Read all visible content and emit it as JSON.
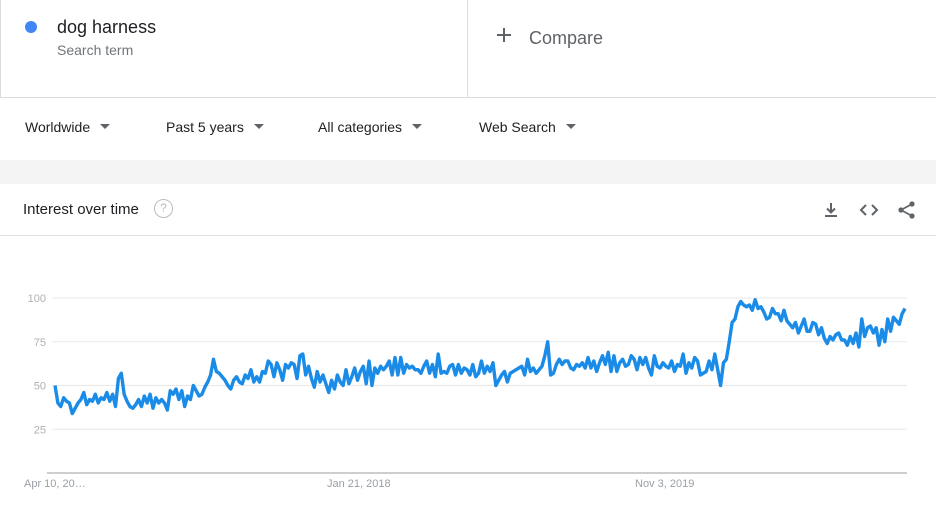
{
  "search_term": {
    "name": "dog harness",
    "subtitle": "Search term",
    "color": "#4285f4"
  },
  "compare": {
    "label": "Compare",
    "icon": "plus-icon"
  },
  "filters": [
    {
      "label": "Worldwide"
    },
    {
      "label": "Past 5 years"
    },
    {
      "label": "All categories"
    },
    {
      "label": "Web Search"
    }
  ],
  "widget": {
    "title": "Interest over time",
    "help_glyph": "?",
    "icons": [
      "download-icon",
      "embed-icon",
      "share-icon"
    ]
  },
  "chart_data": {
    "type": "line",
    "series_color": "#1a8ce8",
    "ylim": [
      0,
      100
    ],
    "yticks": [
      25,
      50,
      75,
      100
    ],
    "xtick_labels": [
      "Apr 10, 20…",
      "Jan 21, 2018",
      "Nov 3, 2019"
    ],
    "grid": true,
    "series": [
      {
        "values": [
          50,
          40,
          38,
          43,
          41,
          40,
          34,
          37,
          40,
          42,
          46,
          39,
          42,
          41,
          45,
          40,
          43,
          42,
          46,
          41,
          45,
          38,
          54,
          57,
          45,
          41,
          38,
          37,
          39,
          42,
          38,
          44,
          40,
          45,
          37,
          43,
          40,
          42,
          40,
          36,
          47,
          45,
          48,
          42,
          47,
          38,
          44,
          42,
          50,
          47,
          44,
          45,
          49,
          52,
          56,
          65,
          58,
          57,
          55,
          53,
          50,
          48,
          53,
          55,
          52,
          51,
          56,
          54,
          59,
          52,
          55,
          52,
          58,
          57,
          64,
          62,
          55,
          63,
          59,
          53,
          62,
          60,
          63,
          62,
          54,
          67,
          68,
          56,
          61,
          54,
          49,
          58,
          52,
          56,
          51,
          46,
          53,
          48,
          56,
          52,
          50,
          59,
          51,
          55,
          60,
          53,
          58,
          61,
          51,
          64,
          50,
          60,
          57,
          61,
          59,
          61,
          64,
          56,
          66,
          56,
          66,
          57,
          62,
          60,
          61,
          59,
          59,
          57,
          61,
          64,
          57,
          62,
          55,
          68,
          57,
          58,
          57,
          61,
          62,
          56,
          62,
          57,
          60,
          59,
          56,
          62,
          55,
          57,
          64,
          57,
          61,
          58,
          63,
          50,
          53,
          56,
          58,
          52,
          57,
          58,
          59,
          60,
          61,
          56,
          65,
          58,
          60,
          57,
          59,
          61,
          67,
          75,
          56,
          57,
          62,
          65,
          62,
          64,
          64,
          60,
          59,
          62,
          61,
          63,
          60,
          66,
          60,
          64,
          58,
          63,
          67,
          62,
          69,
          58,
          67,
          58,
          63,
          65,
          61,
          62,
          67,
          65,
          59,
          66,
          62,
          66,
          60,
          56,
          67,
          61,
          60,
          63,
          61,
          60,
          64,
          58,
          62,
          61,
          68,
          57,
          63,
          60,
          66,
          64,
          56,
          57,
          58,
          64,
          59,
          68,
          59,
          50,
          63,
          65,
          75,
          86,
          88,
          95,
          98,
          96,
          95,
          96,
          93,
          99,
          94,
          95,
          92,
          88,
          89,
          94,
          91,
          91,
          87,
          93,
          87,
          85,
          83,
          86,
          80,
          84,
          88,
          81,
          81,
          86,
          85,
          79,
          83,
          77,
          74,
          78,
          76,
          79,
          80,
          76,
          76,
          73,
          78,
          74,
          80,
          72,
          88,
          78,
          83,
          84,
          80,
          83,
          73,
          82,
          75,
          88,
          81,
          89,
          87,
          85,
          91,
          94
        ]
      }
    ]
  }
}
